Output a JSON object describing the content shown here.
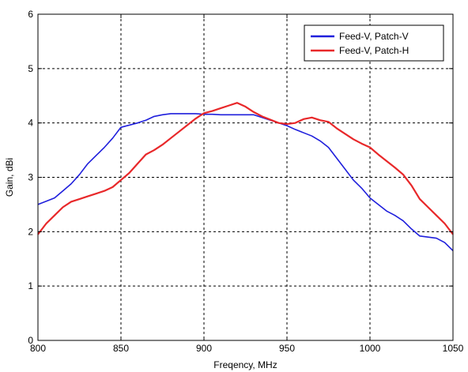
{
  "chart_data": {
    "type": "line",
    "title": "",
    "xlabel": "Freqency, MHz",
    "ylabel": "Gain, dBi",
    "xlim": [
      800,
      1050
    ],
    "ylim": [
      0,
      6
    ],
    "xticks": [
      800,
      850,
      900,
      950,
      1000,
      1050
    ],
    "yticks": [
      0,
      1,
      2,
      3,
      4,
      5,
      6
    ],
    "grid": true,
    "legend_position": "top-right",
    "series": [
      {
        "name": "Feed-V, Patch-V",
        "color": "#1f1fdc",
        "x": [
          800,
          810,
          815,
          820,
          825,
          830,
          835,
          840,
          845,
          850,
          855,
          860,
          865,
          870,
          875,
          880,
          885,
          890,
          895,
          900,
          905,
          910,
          915,
          920,
          925,
          930,
          935,
          940,
          945,
          950,
          955,
          960,
          965,
          970,
          975,
          980,
          985,
          990,
          995,
          1000,
          1005,
          1010,
          1015,
          1020,
          1025,
          1030,
          1035,
          1040,
          1045,
          1050
        ],
        "y": [
          2.5,
          2.62,
          2.75,
          2.88,
          3.05,
          3.25,
          3.4,
          3.55,
          3.72,
          3.92,
          3.96,
          4.0,
          4.05,
          4.12,
          4.15,
          4.17,
          4.17,
          4.17,
          4.17,
          4.16,
          4.16,
          4.15,
          4.15,
          4.15,
          4.15,
          4.15,
          4.1,
          4.05,
          4.0,
          3.95,
          3.88,
          3.82,
          3.76,
          3.67,
          3.55,
          3.35,
          3.15,
          2.95,
          2.8,
          2.62,
          2.5,
          2.38,
          2.3,
          2.2,
          2.05,
          1.92,
          1.9,
          1.88,
          1.8,
          1.65
        ]
      },
      {
        "name": "Feed-V, Patch-H",
        "color": "#e8282a",
        "x": [
          800,
          805,
          810,
          815,
          820,
          825,
          830,
          835,
          840,
          845,
          850,
          855,
          860,
          865,
          870,
          875,
          880,
          885,
          890,
          895,
          900,
          905,
          910,
          915,
          920,
          925,
          930,
          935,
          940,
          945,
          950,
          955,
          960,
          965,
          970,
          975,
          980,
          985,
          990,
          995,
          1000,
          1005,
          1010,
          1015,
          1020,
          1025,
          1030,
          1035,
          1040,
          1045,
          1050
        ],
        "y": [
          1.95,
          2.15,
          2.3,
          2.45,
          2.55,
          2.6,
          2.65,
          2.7,
          2.75,
          2.82,
          2.95,
          3.08,
          3.25,
          3.42,
          3.5,
          3.6,
          3.72,
          3.84,
          3.96,
          4.08,
          4.18,
          4.22,
          4.27,
          4.32,
          4.37,
          4.3,
          4.2,
          4.12,
          4.06,
          4.0,
          3.98,
          4.0,
          4.07,
          4.1,
          4.05,
          4.02,
          3.9,
          3.8,
          3.7,
          3.62,
          3.55,
          3.42,
          3.3,
          3.18,
          3.05,
          2.85,
          2.6,
          2.45,
          2.3,
          2.15,
          1.95
        ]
      }
    ]
  }
}
